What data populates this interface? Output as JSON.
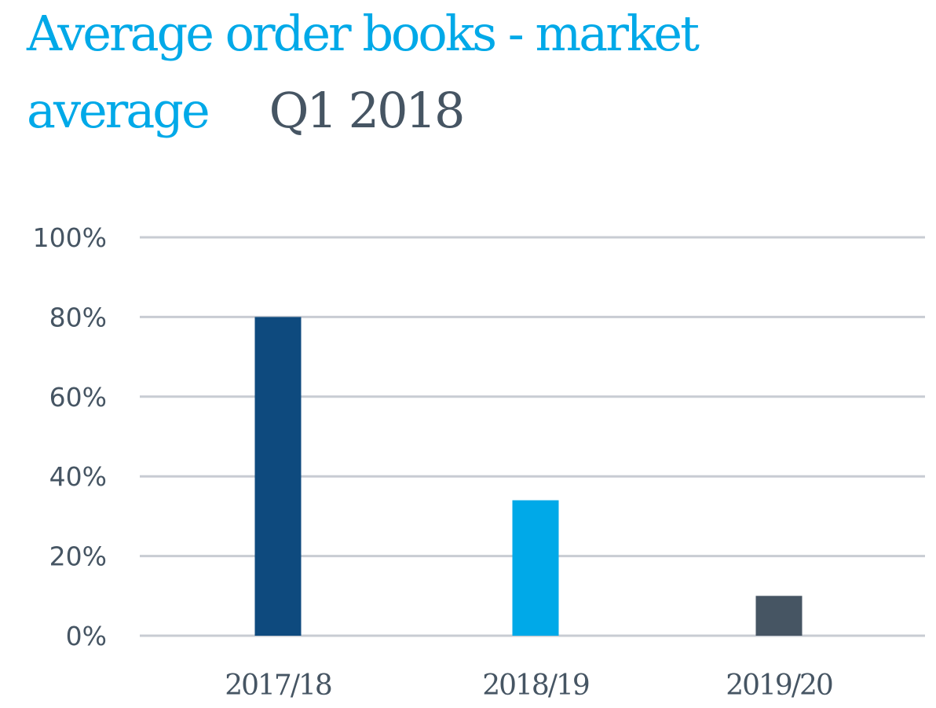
{
  "title": {
    "main": "Average order books - market average",
    "period": "Q1 2018"
  },
  "chart_data": {
    "type": "bar",
    "categories": [
      "2017/18",
      "2018/19",
      "2019/20"
    ],
    "values": [
      80,
      34,
      10
    ],
    "bar_colors": [
      "#0e4a7e",
      "#00a9e8",
      "#465563"
    ],
    "ylim": [
      0,
      100
    ],
    "yticks": [
      0,
      20,
      40,
      60,
      80,
      100
    ],
    "ytick_labels": [
      "0%",
      "20%",
      "40%",
      "60%",
      "80%",
      "100%"
    ],
    "grid": true,
    "xlabel": "",
    "ylabel": ""
  }
}
